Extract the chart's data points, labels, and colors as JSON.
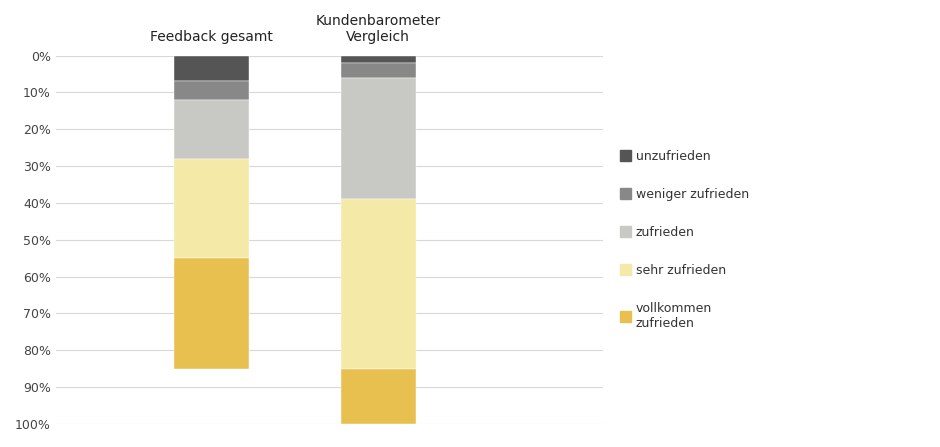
{
  "categories": [
    "Feedback gesamt",
    "Kundenbarometer\nVergleich"
  ],
  "segments": [
    {
      "label": "unzufrieden",
      "values": [
        7,
        2
      ],
      "color": "#555555"
    },
    {
      "label": "weniger zufrieden",
      "values": [
        5,
        4
      ],
      "color": "#888888"
    },
    {
      "label": "zufrieden",
      "values": [
        16,
        33
      ],
      "color": "#c8c8c4"
    },
    {
      "label": "sehr zufrieden",
      "values": [
        27,
        46
      ],
      "color": "#f5e9a8"
    },
    {
      "label": "vollkommen\nzufrieden",
      "values": [
        30,
        15
      ],
      "color": "#e8c050"
    }
  ],
  "bar_width": 0.13,
  "bar_positions": [
    0.27,
    0.56
  ],
  "xlim": [
    0.0,
    0.95
  ],
  "ylim": [
    0,
    100
  ],
  "ytick_labels": [
    "0%",
    "10%",
    "20%",
    "30%",
    "40%",
    "50%",
    "60%",
    "70%",
    "80%",
    "90%",
    "100%"
  ],
  "ytick_values": [
    0,
    10,
    20,
    30,
    40,
    50,
    60,
    70,
    80,
    90,
    100
  ],
  "background_color": "#ffffff",
  "grid_color": "#d8d8d8",
  "label_fontsize": 10,
  "tick_fontsize": 9,
  "legend_fontsize": 9
}
